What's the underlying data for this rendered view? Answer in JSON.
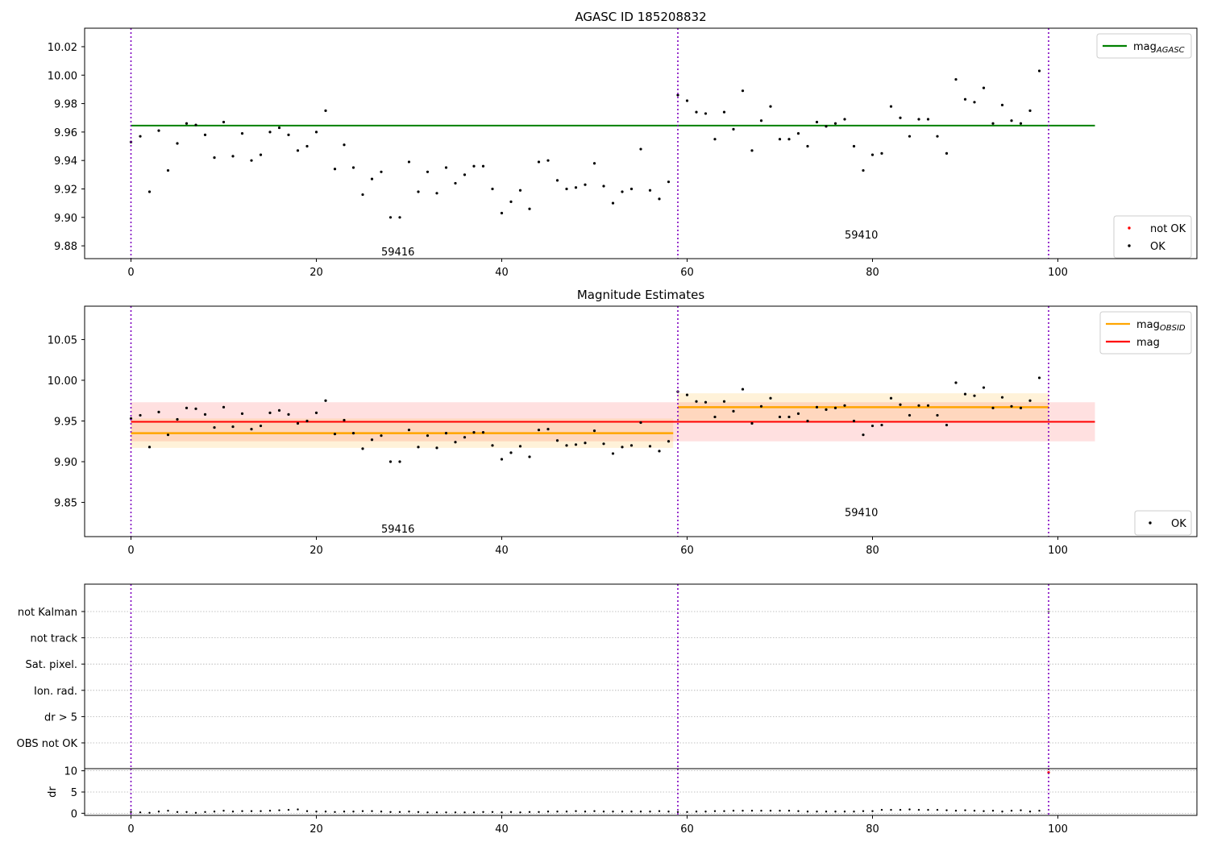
{
  "chart_data": [
    {
      "type": "scatter",
      "title": "AGASC ID 185208832",
      "xlabel": "",
      "ylabel": "",
      "xlim": [
        -5,
        115
      ],
      "ylim": [
        9.871,
        10.033
      ],
      "xticks": [
        0,
        20,
        40,
        60,
        80,
        100
      ],
      "yticks": [
        9.88,
        9.9,
        9.92,
        9.94,
        9.96,
        9.98,
        10.0,
        10.02
      ],
      "ytick_labels": [
        "9.88",
        "9.90",
        "9.92",
        "9.94",
        "9.96",
        "9.98",
        "10.00",
        "10.02"
      ],
      "vlines": [
        0,
        59,
        99
      ],
      "hlines": [
        {
          "name": "mag_AGASC",
          "y": 9.9645,
          "x0": 0,
          "x1": 104,
          "color": "#008000"
        }
      ],
      "annotations": [
        {
          "text": "59416",
          "x": 29,
          "y": 9.876
        },
        {
          "text": "59410",
          "x": 79,
          "y": 9.888
        }
      ],
      "legend": {
        "position": "top-right",
        "entries": [
          {
            "label": "mag",
            "sub": "AGASC",
            "kind": "line",
            "color": "#008000"
          }
        ]
      },
      "legend2": {
        "position": "bottom-right",
        "entries": [
          {
            "label": "not OK",
            "kind": "dot",
            "color": "#ff0000"
          },
          {
            "label": "OK",
            "kind": "dot",
            "color": "#000000"
          }
        ]
      },
      "series": [
        {
          "name": "OK",
          "color": "#000000",
          "y": [
            9.953,
            9.957,
            9.918,
            9.961,
            9.933,
            9.952,
            9.966,
            9.965,
            9.958,
            9.942,
            9.967,
            9.943,
            9.959,
            9.94,
            9.944,
            9.96,
            9.963,
            9.958,
            9.947,
            9.95,
            9.96,
            9.975,
            9.934,
            9.951,
            9.935,
            9.916,
            9.927,
            9.932,
            9.9,
            9.9,
            9.939,
            9.918,
            9.932,
            9.917,
            9.935,
            9.924,
            9.93,
            9.936,
            9.936,
            9.92,
            9.903,
            9.911,
            9.919,
            9.906,
            9.939,
            9.94,
            9.926,
            9.92,
            9.921,
            9.923,
            9.938,
            9.922,
            9.91,
            9.918,
            9.92,
            9.948,
            9.919,
            9.913,
            9.925,
            9.986,
            9.982,
            9.974,
            9.973,
            9.955,
            9.974,
            9.962,
            9.989,
            9.947,
            9.968,
            9.978,
            9.955,
            9.955,
            9.959,
            9.95,
            9.967,
            9.964,
            9.966,
            9.969,
            9.95,
            9.933,
            9.944,
            9.945,
            9.978,
            9.97,
            9.957,
            9.969,
            9.969,
            9.957,
            9.945,
            9.997,
            9.983,
            9.981,
            9.991,
            9.966,
            9.979,
            9.968,
            9.966,
            9.975,
            10.003
          ]
        }
      ]
    },
    {
      "type": "scatter",
      "title": "Magnitude Estimates",
      "xlabel": "",
      "ylabel": "",
      "xlim": [
        -5,
        115
      ],
      "ylim": [
        9.808,
        10.091
      ],
      "xticks": [
        0,
        20,
        40,
        60,
        80,
        100
      ],
      "yticks": [
        9.85,
        9.9,
        9.95,
        10.0,
        10.05
      ],
      "ytick_labels": [
        "9.85",
        "9.90",
        "9.95",
        "10.00",
        "10.05"
      ],
      "vlines": [
        0,
        59,
        99
      ],
      "bands": [
        {
          "x0": 0,
          "x1": 104,
          "y0": 9.925,
          "y1": 9.973,
          "color": "rgba(255,0,0,0.12)"
        },
        {
          "x0": 0,
          "x1": 58.5,
          "y0": 9.917,
          "y1": 9.953,
          "color": "rgba(255,165,0,0.15)"
        },
        {
          "x0": 59,
          "x1": 99,
          "y0": 9.95,
          "y1": 9.984,
          "color": "rgba(255,165,0,0.15)"
        }
      ],
      "hlines": [
        {
          "name": "mag_OBSID",
          "y": 9.935,
          "x0": 0,
          "x1": 58.5,
          "color": "#ffa500"
        },
        {
          "name": "mag_OBSID",
          "y": 9.967,
          "x0": 59,
          "x1": 99,
          "color": "#ffa500"
        },
        {
          "name": "mag",
          "y": 9.949,
          "x0": 0,
          "x1": 104,
          "color": "#ff0000"
        }
      ],
      "annotations": [
        {
          "text": "59416",
          "x": 29,
          "y": 9.818
        },
        {
          "text": "59410",
          "x": 79,
          "y": 9.838
        }
      ],
      "legend": {
        "position": "top-right",
        "entries": [
          {
            "label": "mag",
            "sub": "OBSID",
            "kind": "line",
            "color": "#ffa500"
          },
          {
            "label": "mag",
            "sub": "",
            "kind": "line",
            "color": "#ff0000"
          }
        ]
      },
      "legend2": {
        "position": "bottom-right",
        "entries": [
          {
            "label": "OK",
            "kind": "dot",
            "color": "#000000"
          }
        ]
      },
      "series": [
        {
          "name": "OK",
          "color": "#000000",
          "y": [
            9.953,
            9.957,
            9.918,
            9.961,
            9.933,
            9.952,
            9.966,
            9.965,
            9.958,
            9.942,
            9.967,
            9.943,
            9.959,
            9.94,
            9.944,
            9.96,
            9.963,
            9.958,
            9.947,
            9.95,
            9.96,
            9.975,
            9.934,
            9.951,
            9.935,
            9.916,
            9.927,
            9.932,
            9.9,
            9.9,
            9.939,
            9.918,
            9.932,
            9.917,
            9.935,
            9.924,
            9.93,
            9.936,
            9.936,
            9.92,
            9.903,
            9.911,
            9.919,
            9.906,
            9.939,
            9.94,
            9.926,
            9.92,
            9.921,
            9.923,
            9.938,
            9.922,
            9.91,
            9.918,
            9.92,
            9.948,
            9.919,
            9.913,
            9.925,
            9.986,
            9.982,
            9.974,
            9.973,
            9.955,
            9.974,
            9.962,
            9.989,
            9.947,
            9.968,
            9.978,
            9.955,
            9.955,
            9.959,
            9.95,
            9.967,
            9.964,
            9.966,
            9.969,
            9.95,
            9.933,
            9.944,
            9.945,
            9.978,
            9.97,
            9.957,
            9.969,
            9.969,
            9.957,
            9.945,
            9.997,
            9.983,
            9.981,
            9.991,
            9.966,
            9.979,
            9.968,
            9.966,
            9.975,
            10.003
          ]
        }
      ]
    },
    {
      "type": "scatter",
      "title": "",
      "xlim": [
        -5,
        115
      ],
      "flag_categories": [
        "not Kalman",
        "not track",
        "Sat. pixel.",
        "Ion. rad.",
        "dr > 5",
        "OBS not OK"
      ],
      "vlines": [
        0,
        59,
        99
      ],
      "flag_points": [
        {
          "category": "not Kalman",
          "x": 99
        }
      ],
      "dr_panel": {
        "ylabel": "dr",
        "ylim": [
          -0.5,
          10.5
        ],
        "yticks": [
          0,
          5,
          10
        ],
        "ytick_labels": [
          "0",
          "5",
          "10"
        ],
        "xticks": [
          0,
          20,
          40,
          60,
          80,
          100
        ],
        "red_points": [
          {
            "x": 99,
            "y": 9.6
          }
        ],
        "y": [
          0.3,
          0.2,
          0.1,
          0.4,
          0.6,
          0.3,
          0.3,
          0.1,
          0.3,
          0.4,
          0.6,
          0.4,
          0.5,
          0.5,
          0.5,
          0.6,
          0.7,
          0.8,
          0.9,
          0.5,
          0.4,
          0.4,
          0.3,
          0.4,
          0.4,
          0.5,
          0.5,
          0.4,
          0.3,
          0.3,
          0.4,
          0.3,
          0.2,
          0.2,
          0.2,
          0.2,
          0.2,
          0.2,
          0.3,
          0.3,
          0.2,
          0.3,
          0.2,
          0.3,
          0.3,
          0.4,
          0.4,
          0.4,
          0.5,
          0.4,
          0.5,
          0.4,
          0.4,
          0.4,
          0.4,
          0.4,
          0.4,
          0.5,
          0.4,
          0.3,
          0.3,
          0.4,
          0.4,
          0.5,
          0.5,
          0.6,
          0.6,
          0.6,
          0.6,
          0.6,
          0.6,
          0.6,
          0.5,
          0.4,
          0.4,
          0.4,
          0.4,
          0.4,
          0.4,
          0.5,
          0.5,
          0.8,
          0.8,
          0.8,
          0.9,
          0.8,
          0.8,
          0.8,
          0.7,
          0.6,
          0.7,
          0.6,
          0.5,
          0.6,
          0.4,
          0.6,
          0.7,
          0.4,
          0.6
        ]
      }
    }
  ]
}
